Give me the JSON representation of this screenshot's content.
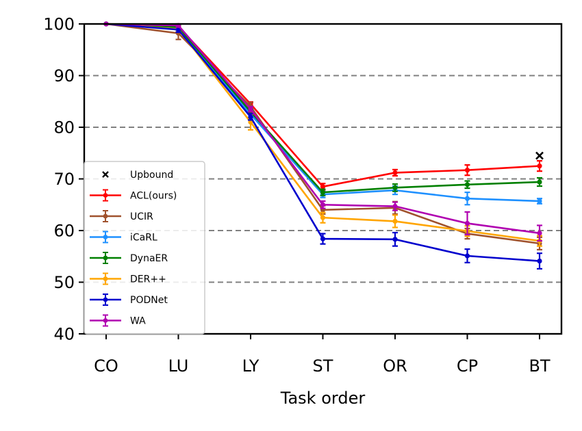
{
  "chart_data": {
    "type": "line",
    "title": "",
    "xlabel": "Task order",
    "ylabel": "",
    "categories": [
      "CO",
      "LU",
      "LY",
      "ST",
      "OR",
      "CP",
      "BT"
    ],
    "ylim": [
      40,
      100
    ],
    "yticks": [
      40,
      50,
      60,
      70,
      80,
      90,
      100
    ],
    "grid": "horizontal dashed",
    "legend_position": "lower-left",
    "upbound": {
      "name": "Upbound",
      "category": "BT",
      "value": 74.5,
      "color": "#000000"
    },
    "series": [
      {
        "name": "ACL(ours)",
        "color": "#ff0000",
        "values": [
          100,
          99.5,
          84.5,
          68.5,
          71.2,
          71.7,
          72.5
        ],
        "errors": [
          0,
          0.3,
          0.4,
          0.6,
          0.6,
          1.0,
          1.0
        ]
      },
      {
        "name": "UCIR",
        "color": "#a0522d",
        "values": [
          100,
          98.2,
          84.0,
          64.0,
          64.4,
          59.4,
          57.5
        ],
        "errors": [
          0,
          1.2,
          0.8,
          0.8,
          1.2,
          1.0,
          1.2
        ]
      },
      {
        "name": "iCaRL",
        "color": "#1e90ff",
        "values": [
          100,
          99.2,
          82.5,
          67.0,
          67.8,
          66.2,
          65.7
        ],
        "errors": [
          0,
          0.4,
          0.6,
          0.6,
          0.8,
          1.2,
          0.5
        ]
      },
      {
        "name": "DynaER",
        "color": "#008000",
        "values": [
          100,
          99.4,
          83.0,
          67.4,
          68.3,
          68.9,
          69.4
        ],
        "errors": [
          0,
          0.3,
          0.5,
          0.6,
          0.7,
          0.7,
          0.8
        ]
      },
      {
        "name": "DER++",
        "color": "#ffa500",
        "values": [
          100,
          99.0,
          81.0,
          62.5,
          61.8,
          59.9,
          58.0
        ],
        "errors": [
          0,
          0.5,
          1.5,
          1.0,
          1.2,
          1.0,
          1.0
        ]
      },
      {
        "name": "PODNet",
        "color": "#0000cd",
        "values": [
          100,
          98.9,
          82.0,
          58.4,
          58.3,
          55.1,
          54.1
        ],
        "errors": [
          0,
          0.5,
          0.6,
          1.0,
          1.3,
          1.3,
          1.5
        ]
      },
      {
        "name": "WA",
        "color": "#b000b0",
        "values": [
          100,
          99.7,
          83.5,
          65.0,
          64.7,
          61.4,
          59.5
        ],
        "errors": [
          0,
          0.3,
          0.5,
          0.7,
          0.8,
          2.2,
          1.5
        ]
      }
    ]
  }
}
